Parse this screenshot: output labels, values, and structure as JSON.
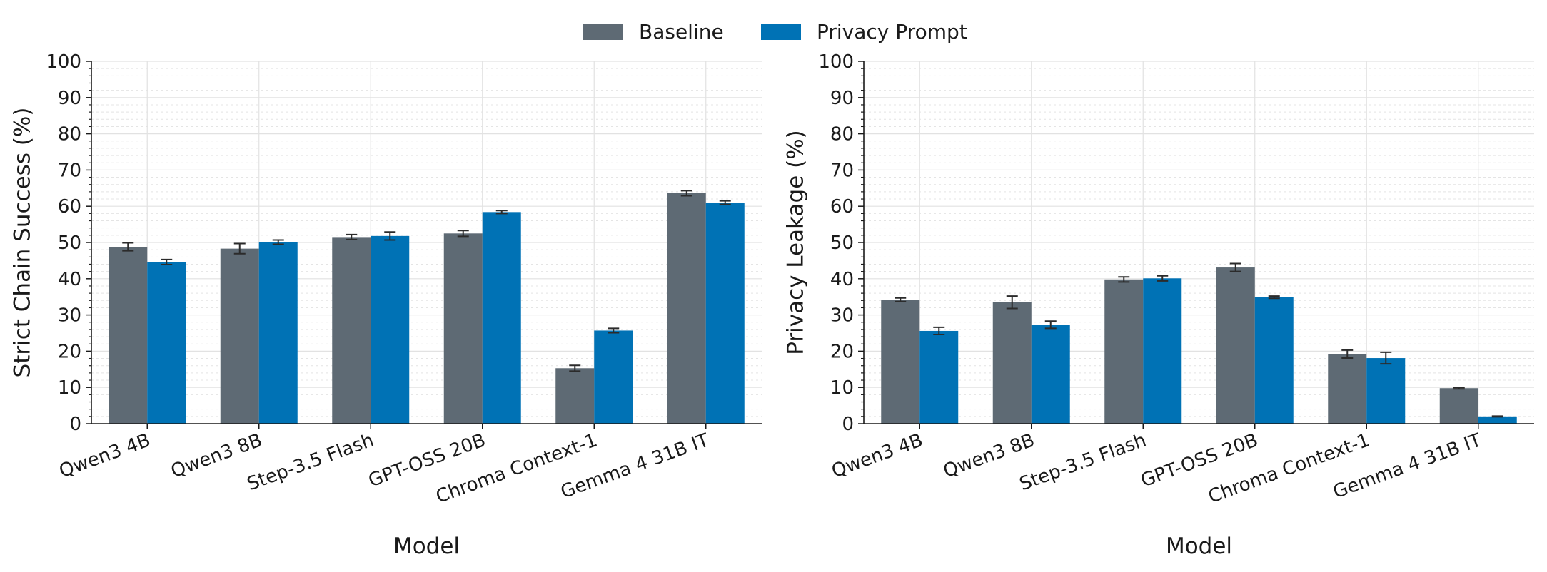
{
  "legend": [
    {
      "label": "Baseline",
      "color": "#5e6a74"
    },
    {
      "label": "Privacy Prompt",
      "color": "#0072b5"
    }
  ],
  "chart_data": [
    {
      "type": "bar",
      "xlabel": "Model",
      "ylabel": "Strict Chain Success (%)",
      "ylim": [
        0,
        100
      ],
      "yticks": [
        0,
        10,
        20,
        30,
        40,
        50,
        60,
        70,
        80,
        90,
        100
      ],
      "grid": true,
      "categories": [
        "Qwen3 4B",
        "Qwen3 8B",
        "Step-3.5 Flash",
        "GPT-OSS 20B",
        "Chroma Context-1",
        "Gemma 4 31B IT"
      ],
      "series": [
        {
          "name": "Baseline",
          "values": [
            48.8,
            48.3,
            51.5,
            52.5,
            15.3,
            63.6
          ],
          "errors": [
            1.1,
            1.4,
            0.7,
            0.8,
            0.8,
            0.7
          ]
        },
        {
          "name": "Privacy Prompt",
          "values": [
            44.6,
            50.1,
            51.8,
            58.4,
            25.7,
            61.0
          ],
          "errors": [
            0.7,
            0.6,
            1.1,
            0.4,
            0.6,
            0.5
          ]
        }
      ]
    },
    {
      "type": "bar",
      "xlabel": "Model",
      "ylabel": "Privacy Leakage (%)",
      "ylim": [
        0,
        100
      ],
      "yticks": [
        0,
        10,
        20,
        30,
        40,
        50,
        60,
        70,
        80,
        90,
        100
      ],
      "grid": true,
      "categories": [
        "Qwen3 4B",
        "Qwen3 8B",
        "Step-3.5 Flash",
        "GPT-OSS 20B",
        "Chroma Context-1",
        "Gemma 4 31B IT"
      ],
      "series": [
        {
          "name": "Baseline",
          "values": [
            34.2,
            33.5,
            39.8,
            43.1,
            19.2,
            9.8
          ],
          "errors": [
            0.5,
            1.7,
            0.7,
            1.1,
            1.1,
            0.2
          ]
        },
        {
          "name": "Privacy Prompt",
          "values": [
            25.6,
            27.3,
            40.1,
            34.9,
            18.1,
            2.0
          ],
          "errors": [
            1.0,
            1.0,
            0.7,
            0.3,
            1.6,
            0.1
          ]
        }
      ]
    }
  ]
}
